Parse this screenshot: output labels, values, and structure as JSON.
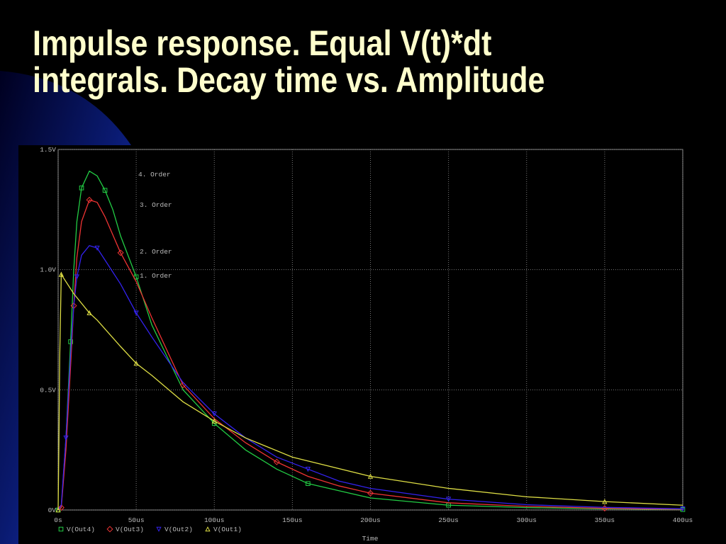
{
  "chart_data": {
    "type": "line",
    "title": [
      "Impulse response. Equal V(t)*dt",
      "integrals. Decay time vs. Amplitude"
    ],
    "x_label": "Time",
    "xlim": [
      0,
      400
    ],
    "ylim": [
      0,
      1.5
    ],
    "xticks": [
      {
        "value": 0,
        "label": "0s"
      },
      {
        "value": 50,
        "label": "50us"
      },
      {
        "value": 100,
        "label": "100us"
      },
      {
        "value": 150,
        "label": "150us"
      },
      {
        "value": 200,
        "label": "200us"
      },
      {
        "value": 250,
        "label": "250us"
      },
      {
        "value": 300,
        "label": "300us"
      },
      {
        "value": 350,
        "label": "350us"
      },
      {
        "value": 400,
        "label": "400us"
      }
    ],
    "yticks": [
      {
        "value": 0,
        "label": "0V"
      },
      {
        "value": 0.5,
        "label": "0.5V"
      },
      {
        "value": 1,
        "label": "1.0V"
      },
      {
        "value": 1.5,
        "label": "1.5V"
      }
    ],
    "grid": true,
    "annotations": [
      "4. Order",
      "3. Order",
      "2. Order",
      "1. Order"
    ],
    "series": [
      {
        "name": "V(Out4)",
        "color": "#22cc44",
        "marker": "square",
        "x": [
          0,
          2,
          5,
          8,
          10,
          12,
          15,
          20,
          25,
          30,
          35,
          40,
          50,
          60,
          80,
          100,
          120,
          140,
          160,
          180,
          200,
          250,
          300,
          350,
          400
        ],
        "values": [
          0,
          0.01,
          0.3,
          0.7,
          1.0,
          1.2,
          1.34,
          1.41,
          1.39,
          1.33,
          1.25,
          1.14,
          0.97,
          0.77,
          0.5,
          0.36,
          0.25,
          0.17,
          0.11,
          0.08,
          0.05,
          0.02,
          0.01,
          0.005,
          0.002
        ]
      },
      {
        "name": "V(Out3)",
        "color": "#ee3333",
        "marker": "diamond",
        "x": [
          0,
          2,
          5,
          8,
          10,
          12,
          15,
          20,
          25,
          30,
          40,
          50,
          60,
          80,
          100,
          120,
          140,
          160,
          180,
          200,
          250,
          300,
          350,
          400
        ],
        "values": [
          0,
          0.01,
          0.25,
          0.6,
          0.85,
          1.05,
          1.2,
          1.29,
          1.28,
          1.22,
          1.07,
          0.95,
          0.8,
          0.52,
          0.38,
          0.28,
          0.2,
          0.14,
          0.1,
          0.07,
          0.03,
          0.015,
          0.007,
          0.003
        ]
      },
      {
        "name": "V(Out2)",
        "color": "#3322ee",
        "marker": "triangle-down",
        "x": [
          0,
          2,
          5,
          8,
          10,
          12,
          15,
          20,
          25,
          30,
          40,
          50,
          60,
          80,
          100,
          120,
          140,
          160,
          180,
          200,
          250,
          300,
          350,
          400
        ],
        "values": [
          0,
          0.02,
          0.3,
          0.65,
          0.85,
          0.97,
          1.06,
          1.1,
          1.09,
          1.04,
          0.94,
          0.82,
          0.72,
          0.53,
          0.4,
          0.3,
          0.22,
          0.17,
          0.12,
          0.09,
          0.045,
          0.022,
          0.011,
          0.005
        ]
      },
      {
        "name": "V(Out1)",
        "color": "#dddd44",
        "marker": "triangle-up",
        "x": [
          0,
          0.5,
          1,
          2,
          5,
          10,
          20,
          25,
          40,
          50,
          60,
          80,
          100,
          120,
          150,
          200,
          250,
          300,
          350,
          400
        ],
        "values": [
          0,
          0.28,
          0.63,
          0.98,
          0.95,
          0.9,
          0.82,
          0.79,
          0.68,
          0.61,
          0.56,
          0.45,
          0.37,
          0.3,
          0.22,
          0.14,
          0.09,
          0.055,
          0.035,
          0.02
        ]
      }
    ]
  }
}
